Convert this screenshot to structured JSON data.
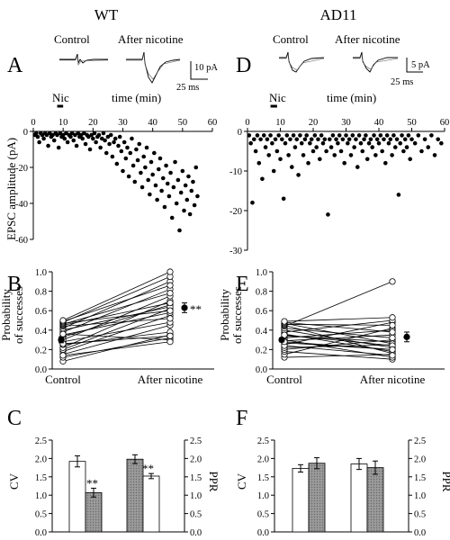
{
  "figure": {
    "groups": [
      "WT",
      "AD11"
    ]
  },
  "panels": {
    "A": {
      "letter": "A",
      "trace_labels": [
        "Control",
        "After nicotine"
      ],
      "scalebar": {
        "amp": "10 pA",
        "time": "25 ms"
      },
      "nic_label": "Nic",
      "xlabel": "time (min)",
      "ylabel": "EPSC amplitude (pA)"
    },
    "D": {
      "letter": "D",
      "trace_labels": [
        "Control",
        "After nicotine"
      ],
      "scalebar": {
        "amp": "5 pA",
        "time": "25 ms"
      },
      "nic_label": "Nic",
      "xlabel": "time (min)"
    },
    "B": {
      "letter": "B",
      "ylabel_line1": "Probability",
      "ylabel_line2": "of successes",
      "sig": "**"
    },
    "E": {
      "letter": "E"
    },
    "C": {
      "letter": "C",
      "ylabel_left": "CV",
      "ylabel_right": "PPR",
      "sig": [
        "**",
        "**"
      ]
    },
    "F": {
      "letter": "F",
      "ylabel_left": "CV",
      "ylabel_right": "PPR"
    }
  },
  "chart_data": [
    {
      "id": "A",
      "type": "scatter",
      "xlabel": "time (min)",
      "ylabel": "EPSC amplitude (pA)",
      "xlim": [
        0,
        60
      ],
      "ylim": [
        -60,
        0
      ],
      "xticks": [
        "0",
        "10",
        "20",
        "30",
        "40",
        "50",
        "60"
      ],
      "yticks": [
        "0",
        "-20",
        "-40",
        "-60"
      ],
      "nicotine_bar": [
        8,
        10
      ],
      "points": [
        [
          0.5,
          -2
        ],
        [
          1,
          -1
        ],
        [
          1.5,
          -3
        ],
        [
          2,
          -6
        ],
        [
          2.5,
          -1
        ],
        [
          3,
          -2
        ],
        [
          3.5,
          -4
        ],
        [
          4,
          -1
        ],
        [
          4.5,
          -2
        ],
        [
          5,
          -8
        ],
        [
          5.5,
          -1
        ],
        [
          6,
          -3
        ],
        [
          6.5,
          -2
        ],
        [
          7,
          -5
        ],
        [
          7.5,
          -1
        ],
        [
          8,
          -2
        ],
        [
          8.5,
          -9
        ],
        [
          9,
          -1
        ],
        [
          9.5,
          -3
        ],
        [
          10,
          -2
        ],
        [
          10.5,
          -4
        ],
        [
          11,
          -1
        ],
        [
          11.5,
          -6
        ],
        [
          12,
          -2
        ],
        [
          12.5,
          -3
        ],
        [
          13,
          -1
        ],
        [
          13.5,
          -5
        ],
        [
          14,
          -2
        ],
        [
          14.5,
          -8
        ],
        [
          15,
          -1
        ],
        [
          15.5,
          -3
        ],
        [
          16,
          -2
        ],
        [
          16.5,
          -4
        ],
        [
          17,
          -1
        ],
        [
          17.5,
          -7
        ],
        [
          18,
          -2
        ],
        [
          18.5,
          -3
        ],
        [
          19,
          -10
        ],
        [
          19.5,
          -2
        ],
        [
          20,
          -4
        ],
        [
          20.5,
          -1
        ],
        [
          21,
          -6
        ],
        [
          21.5,
          -3
        ],
        [
          22,
          -2
        ],
        [
          22.5,
          -9
        ],
        [
          23,
          -4
        ],
        [
          23.5,
          -1
        ],
        [
          24,
          -5
        ],
        [
          24.5,
          -12
        ],
        [
          25,
          -3
        ],
        [
          25.5,
          -7
        ],
        [
          26,
          -2
        ],
        [
          26.5,
          -14
        ],
        [
          27,
          -6
        ],
        [
          27.5,
          -4
        ],
        [
          28,
          -18
        ],
        [
          28.5,
          -8
        ],
        [
          29,
          -3
        ],
        [
          29.5,
          -11
        ],
        [
          30,
          -22
        ],
        [
          30.5,
          -6
        ],
        [
          31,
          -15
        ],
        [
          31.5,
          -9
        ],
        [
          32,
          -25
        ],
        [
          32.5,
          -12
        ],
        [
          33,
          -4
        ],
        [
          33.5,
          -19
        ],
        [
          34,
          -28
        ],
        [
          34.5,
          -10
        ],
        [
          35,
          -16
        ],
        [
          35.5,
          -7
        ],
        [
          36,
          -23
        ],
        [
          36.5,
          -31
        ],
        [
          37,
          -14
        ],
        [
          37.5,
          -20
        ],
        [
          38,
          -9
        ],
        [
          38.5,
          -27
        ],
        [
          39,
          -35
        ],
        [
          39.5,
          -17
        ],
        [
          40,
          -24
        ],
        [
          40.5,
          -12
        ],
        [
          41,
          -30
        ],
        [
          41.5,
          -38
        ],
        [
          42,
          -21
        ],
        [
          42.5,
          -15
        ],
        [
          43,
          -33
        ],
        [
          43.5,
          -26
        ],
        [
          44,
          -42
        ],
        [
          44.5,
          -19
        ],
        [
          45,
          -29
        ],
        [
          45.5,
          -36
        ],
        [
          46,
          -23
        ],
        [
          46.5,
          -48
        ],
        [
          47,
          -31
        ],
        [
          47.5,
          -17
        ],
        [
          48,
          -40
        ],
        [
          48.5,
          -27
        ],
        [
          49,
          -55
        ],
        [
          49.5,
          -34
        ],
        [
          50,
          -22
        ],
        [
          50.5,
          -44
        ],
        [
          51,
          -30
        ],
        [
          51.5,
          -38
        ],
        [
          52,
          -25
        ],
        [
          52.5,
          -46
        ],
        [
          53,
          -33
        ],
        [
          53.5,
          -28
        ],
        [
          54,
          -41
        ],
        [
          54.5,
          -20
        ],
        [
          55,
          -36
        ]
      ]
    },
    {
      "id": "D",
      "type": "scatter",
      "xlabel": "time (min)",
      "xlim": [
        0,
        60
      ],
      "ylim": [
        -30,
        0
      ],
      "xticks": [
        "0",
        "10",
        "20",
        "30",
        "40",
        "50",
        "60"
      ],
      "yticks": [
        "0",
        "-10",
        "-20",
        "-30"
      ],
      "nicotine_bar": [
        7,
        9
      ],
      "points": [
        [
          0.5,
          -1
        ],
        [
          1,
          -3
        ],
        [
          1.5,
          -18
        ],
        [
          2,
          -2
        ],
        [
          2.5,
          -5
        ],
        [
          3,
          -1
        ],
        [
          3.5,
          -8
        ],
        [
          4,
          -2
        ],
        [
          4.5,
          -12
        ],
        [
          5,
          -1
        ],
        [
          5.5,
          -4
        ],
        [
          6,
          -2
        ],
        [
          6.5,
          -6
        ],
        [
          7,
          -1
        ],
        [
          7.5,
          -3
        ],
        [
          8,
          -10
        ],
        [
          8.5,
          -2
        ],
        [
          9,
          -5
        ],
        [
          9.5,
          -1
        ],
        [
          10,
          -7
        ],
        [
          10.5,
          -2
        ],
        [
          11,
          -17
        ],
        [
          11.5,
          -3
        ],
        [
          12,
          -1
        ],
        [
          12.5,
          -6
        ],
        [
          13,
          -2
        ],
        [
          13.5,
          -9
        ],
        [
          14,
          -1
        ],
        [
          14.5,
          -4
        ],
        [
          15,
          -2
        ],
        [
          15.5,
          -11
        ],
        [
          16,
          -1
        ],
        [
          16.5,
          -3
        ],
        [
          17,
          -6
        ],
        [
          17.5,
          -2
        ],
        [
          18,
          -1
        ],
        [
          18.5,
          -8
        ],
        [
          19,
          -3
        ],
        [
          19.5,
          -2
        ],
        [
          20,
          -5
        ],
        [
          20.5,
          -1
        ],
        [
          21,
          -4
        ],
        [
          21.5,
          -2
        ],
        [
          22,
          -7
        ],
        [
          22.5,
          -1
        ],
        [
          23,
          -3
        ],
        [
          23.5,
          -2
        ],
        [
          24,
          -5
        ],
        [
          24.5,
          -21
        ],
        [
          25,
          -2
        ],
        [
          25.5,
          -4
        ],
        [
          26,
          -1
        ],
        [
          26.5,
          -6
        ],
        [
          27,
          -2
        ],
        [
          27.5,
          -3
        ],
        [
          28,
          -1
        ],
        [
          28.5,
          -5
        ],
        [
          29,
          -2
        ],
        [
          29.5,
          -8
        ],
        [
          30,
          -1
        ],
        [
          30.5,
          -3
        ],
        [
          31,
          -2
        ],
        [
          31.5,
          -6
        ],
        [
          32,
          -1
        ],
        [
          32.5,
          -4
        ],
        [
          33,
          -2
        ],
        [
          33.5,
          -9
        ],
        [
          34,
          -1
        ],
        [
          34.5,
          -3
        ],
        [
          35,
          -5
        ],
        [
          35.5,
          -2
        ],
        [
          36,
          -1
        ],
        [
          36.5,
          -7
        ],
        [
          37,
          -3
        ],
        [
          37.5,
          -2
        ],
        [
          38,
          -4
        ],
        [
          38.5,
          -1
        ],
        [
          39,
          -6
        ],
        [
          39.5,
          -2
        ],
        [
          40,
          -3
        ],
        [
          40.5,
          -1
        ],
        [
          41,
          -5
        ],
        [
          41.5,
          -2
        ],
        [
          42,
          -8
        ],
        [
          42.5,
          -1
        ],
        [
          43,
          -3
        ],
        [
          43.5,
          -2
        ],
        [
          44,
          -6
        ],
        [
          44.5,
          -1
        ],
        [
          45,
          -4
        ],
        [
          45.5,
          -2
        ],
        [
          46,
          -16
        ],
        [
          46.5,
          -3
        ],
        [
          47,
          -1
        ],
        [
          47.5,
          -5
        ],
        [
          48,
          -2
        ],
        [
          48.5,
          -4
        ],
        [
          49,
          -1
        ],
        [
          49.5,
          -7
        ],
        [
          50,
          -2
        ],
        [
          51,
          -3
        ],
        [
          52,
          -1
        ],
        [
          53,
          -5
        ],
        [
          54,
          -2
        ],
        [
          55,
          -4
        ],
        [
          56,
          -1
        ],
        [
          57,
          -6
        ],
        [
          58,
          -2
        ],
        [
          59,
          -3
        ]
      ]
    },
    {
      "id": "B",
      "type": "line",
      "categories": [
        "Control",
        "After nicotine"
      ],
      "ylabel": "Probability of successes",
      "ylim": [
        0,
        1.0
      ],
      "yticks": [
        "0.0",
        "0.2",
        "0.4",
        "0.6",
        "0.8",
        "1.0"
      ],
      "pairs": [
        [
          0.08,
          0.35
        ],
        [
          0.12,
          0.32
        ],
        [
          0.15,
          0.45
        ],
        [
          0.18,
          0.55
        ],
        [
          0.2,
          0.62
        ],
        [
          0.22,
          0.7
        ],
        [
          0.25,
          0.38
        ],
        [
          0.28,
          0.48
        ],
        [
          0.3,
          0.75
        ],
        [
          0.33,
          0.66
        ],
        [
          0.35,
          0.58
        ],
        [
          0.38,
          0.82
        ],
        [
          0.4,
          0.64
        ],
        [
          0.42,
          0.9
        ],
        [
          0.44,
          0.52
        ],
        [
          0.45,
          0.68
        ],
        [
          0.46,
          0.78
        ],
        [
          0.47,
          0.6
        ],
        [
          0.48,
          0.95
        ],
        [
          0.49,
          0.86
        ],
        [
          0.5,
          1.0
        ],
        [
          0.36,
          0.3
        ],
        [
          0.26,
          0.34
        ],
        [
          0.14,
          0.28
        ]
      ],
      "means": [
        0.3,
        0.63
      ],
      "sem": [
        0.03,
        0.05
      ]
    },
    {
      "id": "E",
      "type": "line",
      "categories": [
        "Control",
        "After nicotine"
      ],
      "ylim": [
        0,
        1.0
      ],
      "yticks": [
        "0.0",
        "0.2",
        "0.4",
        "0.6",
        "0.8",
        "1.0"
      ],
      "pairs": [
        [
          0.12,
          0.15
        ],
        [
          0.15,
          0.42
        ],
        [
          0.18,
          0.1
        ],
        [
          0.2,
          0.3
        ],
        [
          0.22,
          0.25
        ],
        [
          0.25,
          0.48
        ],
        [
          0.27,
          0.2
        ],
        [
          0.29,
          0.35
        ],
        [
          0.3,
          0.12
        ],
        [
          0.32,
          0.4
        ],
        [
          0.34,
          0.28
        ],
        [
          0.36,
          0.18
        ],
        [
          0.38,
          0.5
        ],
        [
          0.4,
          0.22
        ],
        [
          0.42,
          0.32
        ],
        [
          0.44,
          0.9
        ],
        [
          0.45,
          0.16
        ],
        [
          0.46,
          0.45
        ],
        [
          0.47,
          0.26
        ],
        [
          0.48,
          0.38
        ],
        [
          0.49,
          0.53
        ],
        [
          0.35,
          0.24
        ],
        [
          0.24,
          0.14
        ],
        [
          0.28,
          0.2
        ]
      ],
      "means": [
        0.3,
        0.33
      ],
      "sem": [
        0.02,
        0.05
      ]
    },
    {
      "id": "C",
      "type": "bar",
      "categories": [
        "CV Control",
        "CV After nicotine",
        "PPR Control",
        "PPR After nicotine"
      ],
      "ylabel_left": "CV",
      "ylabel_right": "PPR",
      "ylim": [
        0,
        2.5
      ],
      "yticks": [
        "0.0",
        "0.5",
        "1.0",
        "1.5",
        "2.0",
        "2.5"
      ],
      "values": [
        1.92,
        1.07,
        1.98,
        1.52
      ],
      "errors": [
        0.15,
        0.12,
        0.12,
        0.07
      ],
      "fill": [
        "#ffffff",
        "#8a8a8a",
        "#8a8a8a",
        "#ffffff"
      ]
    },
    {
      "id": "F",
      "type": "bar",
      "categories": [
        "CV Control",
        "CV After nicotine",
        "PPR Control",
        "PPR After nicotine"
      ],
      "ylabel_left": "CV",
      "ylabel_right": "PPR",
      "ylim": [
        0,
        2.5
      ],
      "yticks": [
        "0.0",
        "0.5",
        "1.0",
        "1.5",
        "2.0",
        "2.5"
      ],
      "values": [
        1.73,
        1.87,
        1.85,
        1.75
      ],
      "errors": [
        0.1,
        0.15,
        0.15,
        0.18
      ],
      "fill": [
        "#ffffff",
        "#8a8a8a",
        "#ffffff",
        "#8a8a8a"
      ]
    }
  ]
}
